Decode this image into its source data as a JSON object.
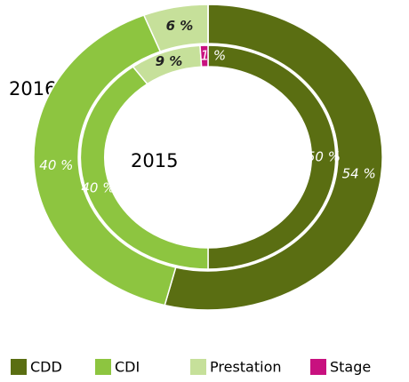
{
  "chart_data": {
    "type": "donut",
    "categories": [
      "CDD",
      "CDI",
      "Prestation",
      "Stage"
    ],
    "colors": [
      "#5a6e12",
      "#8dc540",
      "#c6e09a",
      "#c8117f"
    ],
    "series": [
      {
        "name": "2016",
        "values": [
          54,
          40,
          6,
          0
        ],
        "value_labels": [
          "54 %",
          "40 %",
          "6 %",
          null
        ]
      },
      {
        "name": "2015",
        "values": [
          50,
          40,
          9,
          1
        ],
        "value_labels": [
          "50 %",
          "40 %",
          "9 %",
          "1 %"
        ]
      }
    ],
    "legend": "bottom"
  }
}
